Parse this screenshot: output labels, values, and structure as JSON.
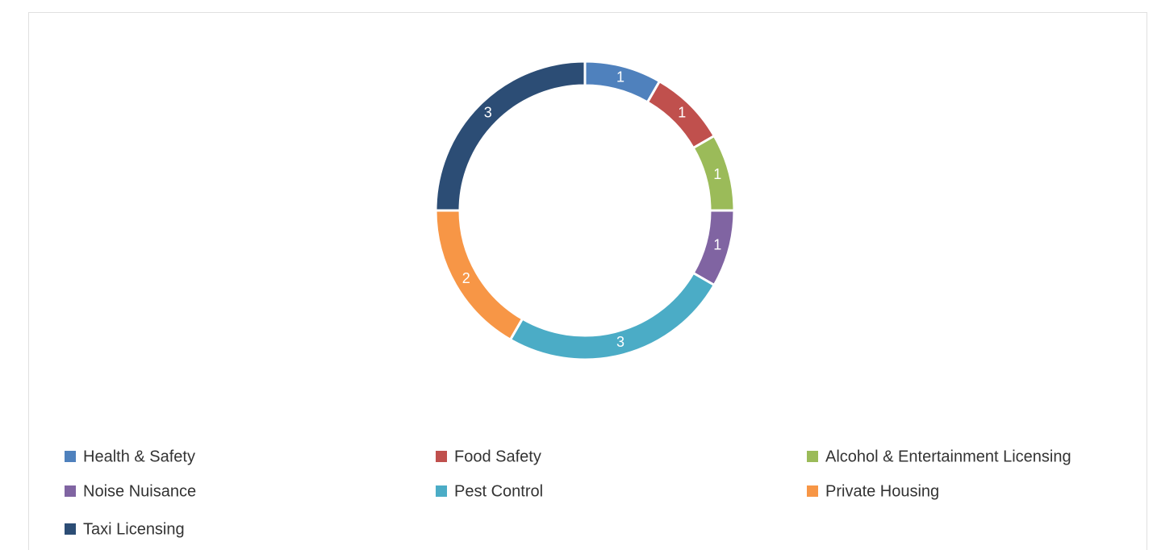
{
  "chart_data": {
    "type": "donut",
    "categories": [
      "Health & Safety",
      "Food Safety",
      "Alcohol & Entertainment Licensing",
      "Noise Nuisance",
      "Pest Control",
      "Private Housing",
      "Taxi Licensing"
    ],
    "values": [
      1,
      1,
      1,
      1,
      3,
      2,
      3
    ],
    "colors": [
      "#4f81bd",
      "#c0504d",
      "#9bbb59",
      "#8064a2",
      "#4bacc6",
      "#f79646",
      "#2c4d75"
    ],
    "legend": "bottom"
  }
}
